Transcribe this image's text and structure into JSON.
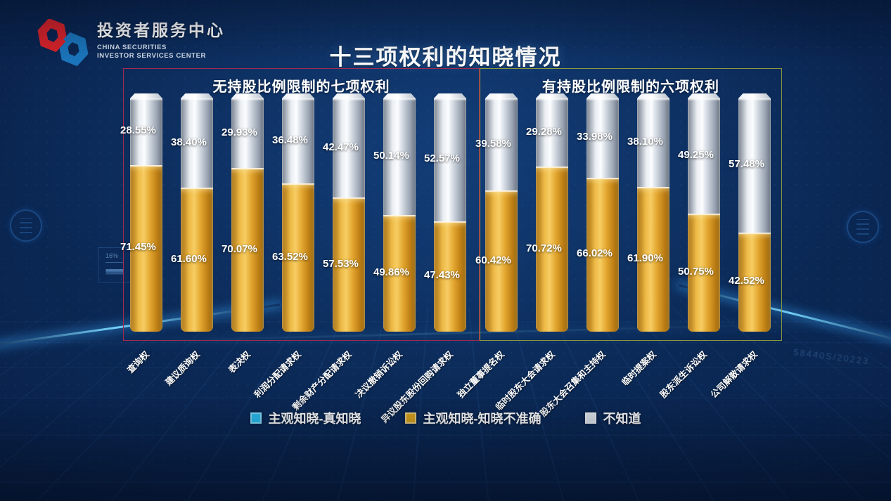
{
  "header": {
    "brand_cn": "投资者服务中心",
    "brand_en1": "CHINA SECURITIES",
    "brand_en2": "INVESTOR SERVICES CENTER",
    "title": "十三项权利的知晓情况"
  },
  "decor": {
    "side_panel_value": "16%",
    "watermark": "58440S/20223"
  },
  "chart_data": {
    "type": "bar",
    "stacked": true,
    "title": "十三项权利的知晓情况",
    "value_unit": "%",
    "ylim": [
      0,
      100
    ],
    "legend_position": "bottom",
    "groups": [
      {
        "title": "无持股比例限制的七项权利",
        "border_color": "#a62a4e",
        "categories": [
          "查询权",
          "建议质询权",
          "表决权",
          "利润分配请求权",
          "剩余财产分配请求权",
          "决议撤销诉讼权",
          "异议股东股份回购请求权"
        ],
        "series": [
          {
            "name": "主观知晓-知晓不准确",
            "position": "bottom",
            "color": "#e2a62e",
            "values": [
              71.45,
              61.6,
              70.07,
              63.52,
              57.53,
              49.86,
              47.43
            ],
            "labels": [
              "71.45%",
              "61.60%",
              "70.07%",
              "63.52%",
              "57.53%",
              "49.86%",
              "47.43%"
            ]
          },
          {
            "name": "不知道",
            "position": "top",
            "color": "#d9dfe7",
            "values": [
              28.55,
              38.4,
              29.93,
              36.48,
              42.47,
              50.14,
              52.57
            ],
            "labels": [
              "28.55%",
              "38.40%",
              "29.93%",
              "36.48%",
              "42.47%",
              "50.14%",
              "52.57%"
            ]
          }
        ]
      },
      {
        "title": "有持股比例限制的六项权利",
        "border_color": "#8a9a3d",
        "categories": [
          "独立董事提名权",
          "临时股东大会请求权",
          "股东大会召集和主持权",
          "临时提案权",
          "股东派生诉讼权",
          "公司解散请求权"
        ],
        "series": [
          {
            "name": "主观知晓-知晓不准确",
            "position": "bottom",
            "color": "#e2a62e",
            "values": [
              60.42,
              70.72,
              66.02,
              61.9,
              50.75,
              42.52
            ],
            "labels": [
              "60.42%",
              "70.72%",
              "66.02%",
              "61.90%",
              "50.75%",
              "42.52%"
            ]
          },
          {
            "name": "不知道",
            "position": "top",
            "color": "#d9dfe7",
            "values": [
              39.58,
              29.28,
              33.98,
              38.1,
              49.25,
              57.48
            ],
            "labels": [
              "39.58%",
              "29.28%",
              "33.98%",
              "38.10%",
              "49.25%",
              "57.48%"
            ]
          }
        ]
      }
    ],
    "legend": [
      {
        "label": "主观知晓-真知晓",
        "color": "#2bbdee"
      },
      {
        "label": "主观知晓-知晓不准确",
        "color": "#d9a31d"
      },
      {
        "label": "不知道",
        "color": "#dfe5ec"
      }
    ]
  }
}
